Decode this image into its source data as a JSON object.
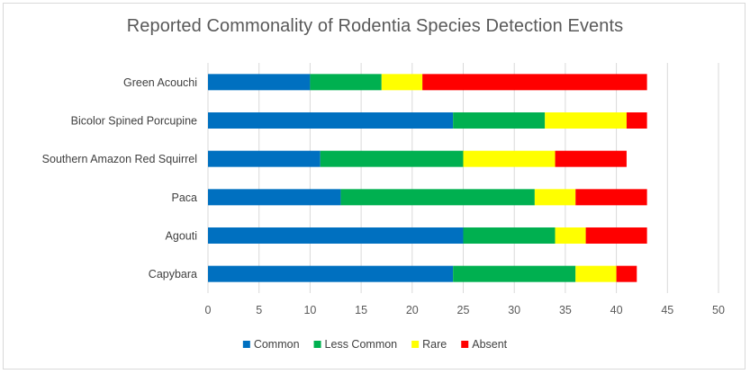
{
  "chart_data": {
    "type": "bar",
    "orientation": "horizontal",
    "stacked": true,
    "title": "Reported Commonality of Rodentia Species Detection Events",
    "categories": [
      "Green Acouchi",
      "Bicolor Spined Porcupine",
      "Southern Amazon Red Squirrel",
      "Paca",
      "Agouti",
      "Capybara"
    ],
    "series": [
      {
        "name": "Common",
        "color": "#0070C0",
        "values": [
          10,
          24,
          11,
          13,
          25,
          24
        ]
      },
      {
        "name": "Less Common",
        "color": "#00B050",
        "values": [
          7,
          9,
          14,
          19,
          9,
          12
        ]
      },
      {
        "name": "Rare",
        "color": "#FFFF00",
        "values": [
          4,
          8,
          9,
          4,
          3,
          4
        ]
      },
      {
        "name": "Absent",
        "color": "#FF0000",
        "values": [
          22,
          2,
          7,
          7,
          6,
          2
        ]
      }
    ],
    "xlim": [
      0,
      50
    ],
    "xticks": [
      "0",
      "5",
      "10",
      "15",
      "20",
      "25",
      "30",
      "35",
      "40",
      "45",
      "50"
    ],
    "grid": true,
    "legend_position": "bottom"
  }
}
